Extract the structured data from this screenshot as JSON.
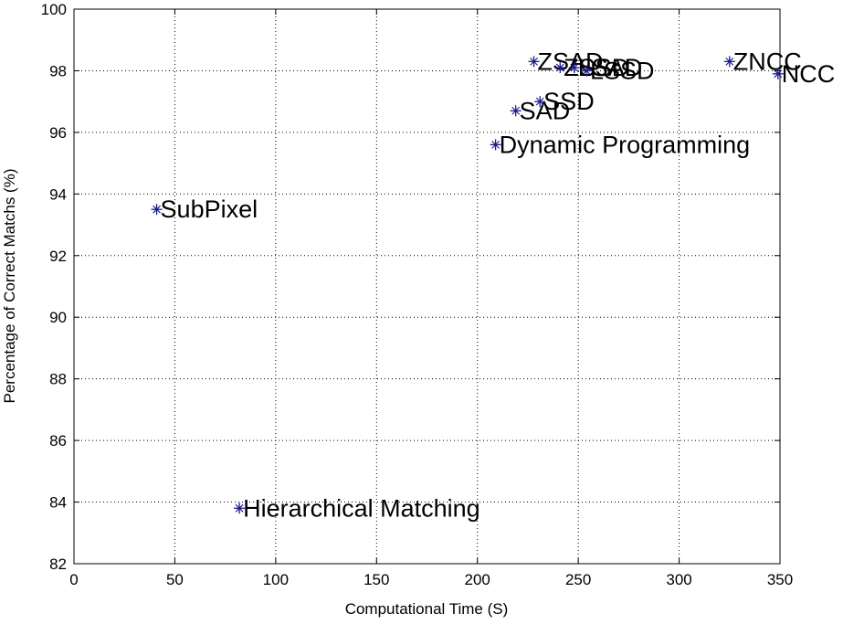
{
  "chart_data": {
    "type": "scatter",
    "title": "",
    "xlabel": "Computational Time (S)",
    "ylabel": "Percentage of Correct Matchs (%)",
    "xlim": [
      0,
      350
    ],
    "ylim": [
      82,
      100
    ],
    "xticks": [
      "0",
      "50",
      "100",
      "150",
      "200",
      "250",
      "300",
      "350"
    ],
    "yticks": [
      "82",
      "84",
      "86",
      "88",
      "90",
      "92",
      "94",
      "96",
      "98",
      "100"
    ],
    "grid": true,
    "marker": "*",
    "marker_color": "#1a1a8c",
    "points": [
      {
        "label": "SubPixel",
        "x": 41,
        "y": 93.5
      },
      {
        "label": "Hierarchical Matching",
        "x": 82,
        "y": 83.8
      },
      {
        "label": "Dynamic Programming",
        "x": 209,
        "y": 95.6
      },
      {
        "label": "SAD",
        "x": 219,
        "y": 96.7
      },
      {
        "label": "SSD",
        "x": 231,
        "y": 97.0
      },
      {
        "label": "ZSAD",
        "x": 228,
        "y": 98.3
      },
      {
        "label": "ZSSD",
        "x": 241,
        "y": 98.1
      },
      {
        "label": "LSAD",
        "x": 248,
        "y": 98.1
      },
      {
        "label": "LSSD",
        "x": 254,
        "y": 98.0
      },
      {
        "label": "ZNCC",
        "x": 325,
        "y": 98.3
      },
      {
        "label": "NCC",
        "x": 349,
        "y": 97.9
      }
    ]
  }
}
